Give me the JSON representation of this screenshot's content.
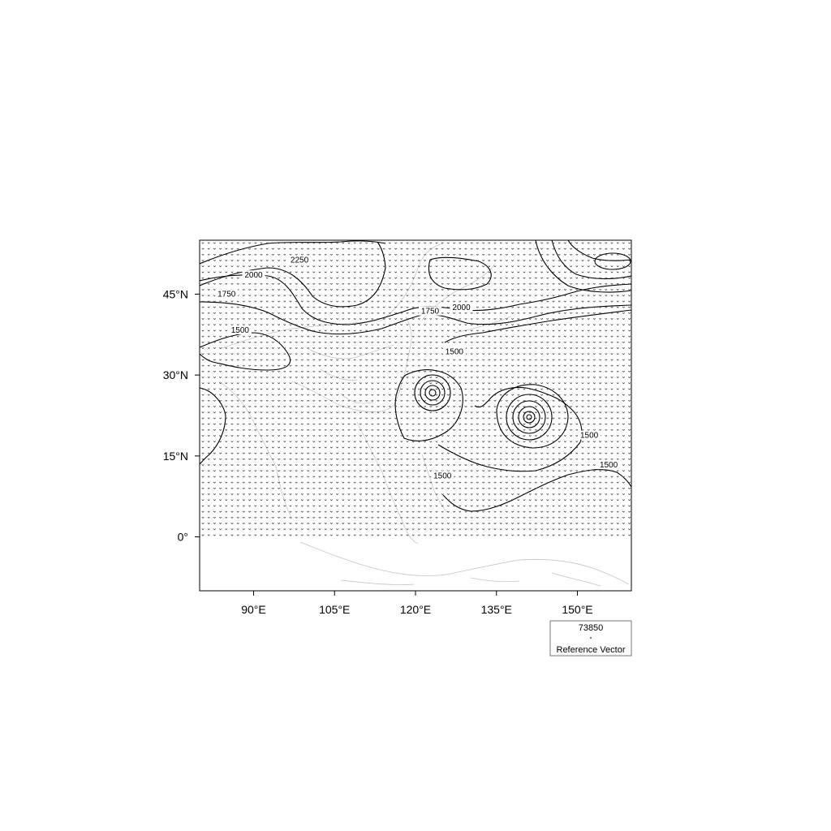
{
  "map": {
    "type": "contour + vector field",
    "lon_range": [
      80,
      160
    ],
    "lat_range": [
      -10,
      55
    ],
    "vector_coverage_lat": [
      0,
      55
    ],
    "lon_ticks": [
      {
        "value": 90,
        "label": "90°E"
      },
      {
        "value": 105,
        "label": "105°E"
      },
      {
        "value": 120,
        "label": "120°E"
      },
      {
        "value": 135,
        "label": "135°E"
      },
      {
        "value": 150,
        "label": "150°E"
      }
    ],
    "lat_ticks": [
      {
        "value": 45,
        "label": "45°N"
      },
      {
        "value": 30,
        "label": "30°N"
      },
      {
        "value": 15,
        "label": "15°N"
      },
      {
        "value": 0,
        "label": "0°"
      }
    ],
    "contour_interval": 250,
    "contour_labels": [
      {
        "text": "2250",
        "lon": 98.5,
        "lat": 51.0
      },
      {
        "text": "2000",
        "lon": 90.0,
        "lat": 48.2
      },
      {
        "text": "1750",
        "lon": 85.0,
        "lat": 44.7
      },
      {
        "text": "1500",
        "lon": 87.5,
        "lat": 38.0
      },
      {
        "text": "1750",
        "lon": 122.7,
        "lat": 41.5
      },
      {
        "text": "2000",
        "lon": 128.5,
        "lat": 42.2
      },
      {
        "text": "1500",
        "lon": 127.2,
        "lat": 34.0
      },
      {
        "text": "1500",
        "lon": 152.2,
        "lat": 18.5
      },
      {
        "text": "1500",
        "lon": 125.0,
        "lat": 11.0
      },
      {
        "text": "1500",
        "lon": 155.8,
        "lat": 13.0
      }
    ],
    "colors": {
      "contour": "#000000",
      "vector": "#333333",
      "coastline": "#bdbdbd",
      "frame": "#000000"
    }
  },
  "reference_vector": {
    "magnitude": "73850",
    "label": "Reference Vector"
  }
}
